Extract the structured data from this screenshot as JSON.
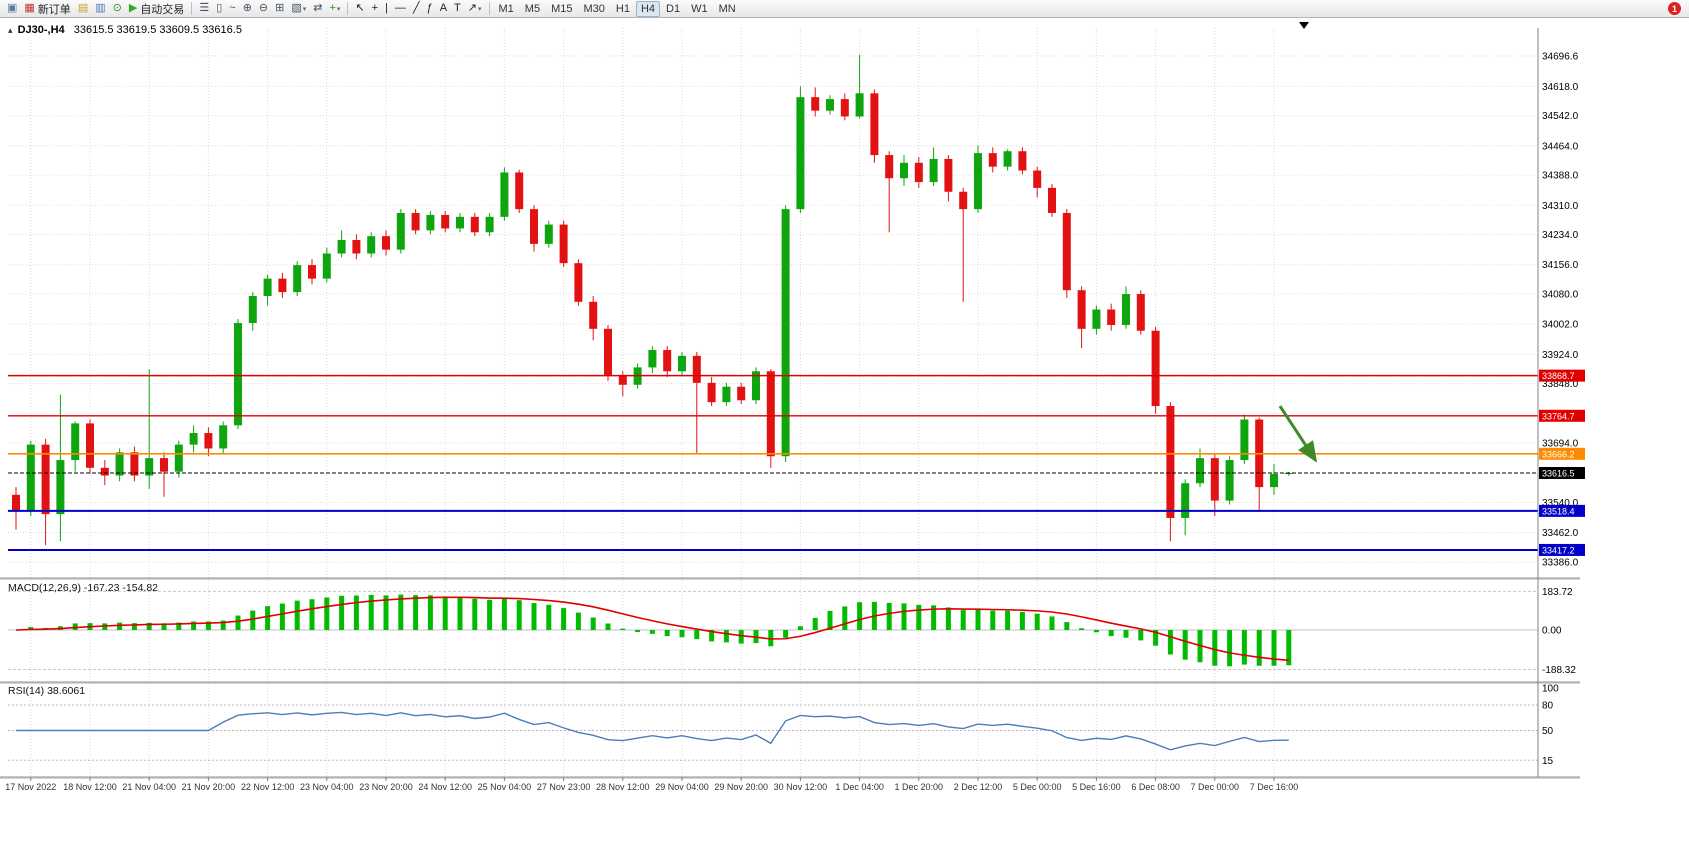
{
  "icons": {
    "chart_mini": "▴"
  },
  "colors": {
    "bull": "#0ea50e",
    "bear": "#e31212",
    "macd_bar": "#00bb00",
    "macd_signal": "#e00000",
    "rsi": "#4a7ebb",
    "grid": "#dcdcdc",
    "bid": "#000000"
  },
  "toolbar": {
    "badge_count": "1",
    "active_timeframe": "H4",
    "timeframes": [
      "M1",
      "M5",
      "M15",
      "M30",
      "H1",
      "H4",
      "D1",
      "W1",
      "MN"
    ],
    "items": [
      {
        "type": "icon",
        "name": "terminal-icon",
        "glyph": "▣",
        "color": "#5a7aa0"
      },
      {
        "type": "button",
        "name": "new-order-button",
        "glyph": "▦",
        "color": "#c03030",
        "label": "新订单"
      },
      {
        "type": "icon",
        "name": "charts-icon",
        "glyph": "▤",
        "color": "#c9a227"
      },
      {
        "type": "icon",
        "name": "market-watch-icon",
        "glyph": "▥",
        "color": "#4878b8"
      },
      {
        "type": "icon",
        "name": "history-center-icon",
        "glyph": "⊙",
        "color": "#2e8b2e"
      },
      {
        "type": "button",
        "name": "autotrade-button",
        "glyph": "▶",
        "color": "#2eaa2e",
        "label": "自动交易"
      },
      {
        "type": "separator"
      },
      {
        "type": "icon",
        "name": "bar-chart-type-icon",
        "glyph": "☰",
        "color": "#445566"
      },
      {
        "type": "icon",
        "name": "candlestick-chart-type-icon",
        "glyph": "▯",
        "color": "#445566"
      },
      {
        "type": "icon",
        "name": "line-chart-type-icon",
        "glyph": "~",
        "color": "#445566"
      },
      {
        "type": "icon",
        "name": "zoom-in-icon",
        "glyph": "⊕",
        "color": "#445566"
      },
      {
        "type": "icon",
        "name": "zoom-out-icon",
        "glyph": "⊖",
        "color": "#445566"
      },
      {
        "type": "icon",
        "name": "tile-windows-icon",
        "glyph": "⊞",
        "color": "#445566"
      },
      {
        "type": "icon",
        "name": "templates-icon",
        "glyph": "▧",
        "color": "#445566",
        "caret": true
      },
      {
        "type": "icon",
        "name": "auto-scroll-icon",
        "glyph": "⇄",
        "color": "#445566"
      },
      {
        "type": "icon",
        "name": "indicators-icon",
        "glyph": "+",
        "color": "#2e8b2e",
        "caret": true
      },
      {
        "type": "separator"
      },
      {
        "type": "icon",
        "name": "cursor-icon",
        "glyph": "↖",
        "color": "#222222"
      },
      {
        "type": "icon",
        "name": "crosshair-icon",
        "glyph": "+",
        "color": "#222222"
      },
      {
        "type": "icon",
        "name": "vertical-line-icon",
        "glyph": "|",
        "color": "#222222"
      },
      {
        "type": "icon",
        "name": "horizontal-line-icon",
        "glyph": "—",
        "color": "#222222"
      },
      {
        "type": "icon",
        "name": "trendline-icon",
        "glyph": "╱",
        "color": "#222222"
      },
      {
        "type": "icon",
        "name": "fibonacci-icon",
        "glyph": "ƒ",
        "color": "#222222"
      },
      {
        "type": "icon",
        "name": "text-icon",
        "glyph": "A",
        "color": "#222222"
      },
      {
        "type": "icon",
        "name": "text-label-icon",
        "glyph": "T",
        "color": "#222222"
      },
      {
        "type": "icon",
        "name": "arrows-icon",
        "glyph": "↗",
        "color": "#222222",
        "caret": true
      },
      {
        "type": "separator"
      }
    ]
  },
  "chart_data": {
    "type": "candlestick",
    "symbol": "DJ30-",
    "timeframe": "H4",
    "title_text": "DJ30-,H4",
    "ohlc_text": "33615.5 33619.5 33609.5 33616.5",
    "x_label_start_index": 1,
    "x_label_step": 4,
    "x_labels": [
      "17 Nov 2022",
      "18 Nov 12:00",
      "21 Nov 04:00",
      "21 Nov 20:00",
      "22 Nov 12:00",
      "23 Nov 04:00",
      "23 Nov 20:00",
      "24 Nov 12:00",
      "25 Nov 04:00",
      "27 Nov 23:00",
      "28 Nov 12:00",
      "29 Nov 04:00",
      "29 Nov 20:00",
      "30 Nov 12:00",
      "1 Dec 04:00",
      "1 Dec 20:00",
      "2 Dec 12:00",
      "5 Dec 00:00",
      "5 Dec 16:00",
      "6 Dec 08:00",
      "7 Dec 00:00",
      "7 Dec 16:00"
    ],
    "price_axis_ticks": [
      "34696.6",
      "34618.0",
      "34542.0",
      "34464.0",
      "34388.0",
      "34310.0",
      "34234.0",
      "34156.0",
      "34080.0",
      "34002.0",
      "33924.0",
      "33848.0",
      "33694.0",
      "33540.0",
      "33462.0",
      "33386.0"
    ],
    "candles": [
      [
        33560,
        33580,
        33470,
        33520
      ],
      [
        33520,
        33700,
        33505,
        33690
      ],
      [
        33690,
        33705,
        33430,
        33510
      ],
      [
        33510,
        33820,
        33440,
        33650
      ],
      [
        33650,
        33750,
        33620,
        33745
      ],
      [
        33745,
        33755,
        33615,
        33630
      ],
      [
        33630,
        33650,
        33585,
        33610
      ],
      [
        33610,
        33680,
        33595,
        33670
      ],
      [
        33670,
        33685,
        33595,
        33610
      ],
      [
        33610,
        33885,
        33575,
        33655
      ],
      [
        33655,
        33670,
        33555,
        33620
      ],
      [
        33620,
        33700,
        33605,
        33690
      ],
      [
        33690,
        33740,
        33670,
        33720
      ],
      [
        33720,
        33735,
        33660,
        33680
      ],
      [
        33680,
        33750,
        33665,
        33740
      ],
      [
        33740,
        34015,
        33730,
        34005
      ],
      [
        34005,
        34085,
        33985,
        34075
      ],
      [
        34075,
        34130,
        34050,
        34120
      ],
      [
        34120,
        34135,
        34070,
        34085
      ],
      [
        34085,
        34165,
        34075,
        34155
      ],
      [
        34155,
        34170,
        34105,
        34120
      ],
      [
        34120,
        34200,
        34110,
        34185
      ],
      [
        34185,
        34245,
        34175,
        34220
      ],
      [
        34220,
        34235,
        34170,
        34185
      ],
      [
        34185,
        34240,
        34175,
        34230
      ],
      [
        34230,
        34245,
        34180,
        34195
      ],
      [
        34195,
        34300,
        34185,
        34290
      ],
      [
        34290,
        34300,
        34235,
        34245
      ],
      [
        34245,
        34295,
        34235,
        34285
      ],
      [
        34285,
        34295,
        34240,
        34250
      ],
      [
        34250,
        34290,
        34240,
        34280
      ],
      [
        34280,
        34290,
        34230,
        34240
      ],
      [
        34240,
        34290,
        34230,
        34280
      ],
      [
        34280,
        34408,
        34270,
        34395
      ],
      [
        34395,
        34402,
        34290,
        34300
      ],
      [
        34300,
        34310,
        34190,
        34210
      ],
      [
        34210,
        34270,
        34200,
        34260
      ],
      [
        34260,
        34270,
        34150,
        34160
      ],
      [
        34160,
        34170,
        34050,
        34060
      ],
      [
        34060,
        34075,
        33960,
        33990
      ],
      [
        33990,
        34000,
        33855,
        33870
      ],
      [
        33870,
        33880,
        33815,
        33845
      ],
      [
        33845,
        33900,
        33835,
        33890
      ],
      [
        33890,
        33945,
        33875,
        33935
      ],
      [
        33935,
        33945,
        33865,
        33880
      ],
      [
        33880,
        33930,
        33870,
        33920
      ],
      [
        33920,
        33930,
        33665,
        33850
      ],
      [
        33850,
        33865,
        33790,
        33800
      ],
      [
        33800,
        33850,
        33790,
        33840
      ],
      [
        33840,
        33850,
        33795,
        33805
      ],
      [
        33805,
        33890,
        33795,
        33880
      ],
      [
        33880,
        33885,
        33630,
        33660
      ],
      [
        33660,
        34310,
        33645,
        34300
      ],
      [
        34300,
        34618,
        34290,
        34590
      ],
      [
        34590,
        34615,
        34540,
        34555
      ],
      [
        34555,
        34595,
        34545,
        34585
      ],
      [
        34585,
        34600,
        34530,
        34540
      ],
      [
        34540,
        34700,
        34535,
        34600
      ],
      [
        34600,
        34610,
        34420,
        34440
      ],
      [
        34440,
        34450,
        34240,
        34380
      ],
      [
        34380,
        34440,
        34360,
        34420
      ],
      [
        34420,
        34435,
        34355,
        34370
      ],
      [
        34370,
        34460,
        34360,
        34430
      ],
      [
        34430,
        34440,
        34320,
        34345
      ],
      [
        34345,
        34355,
        34060,
        34300
      ],
      [
        34300,
        34465,
        34290,
        34445
      ],
      [
        34445,
        34460,
        34395,
        34410
      ],
      [
        34410,
        34455,
        34400,
        34450
      ],
      [
        34450,
        34460,
        34390,
        34400
      ],
      [
        34400,
        34410,
        34330,
        34355
      ],
      [
        34355,
        34365,
        34280,
        34290
      ],
      [
        34290,
        34300,
        34070,
        34090
      ],
      [
        34090,
        34100,
        33940,
        33990
      ],
      [
        33990,
        34050,
        33975,
        34040
      ],
      [
        34040,
        34055,
        33985,
        34000
      ],
      [
        34000,
        34100,
        33990,
        34080
      ],
      [
        34080,
        34090,
        33975,
        33985
      ],
      [
        33985,
        33995,
        33770,
        33790
      ],
      [
        33790,
        33800,
        33440,
        33500
      ],
      [
        33500,
        33600,
        33455,
        33590
      ],
      [
        33590,
        33680,
        33580,
        33655
      ],
      [
        33655,
        33665,
        33505,
        33545
      ],
      [
        33545,
        33660,
        33535,
        33650
      ],
      [
        33650,
        33768,
        33640,
        33755
      ],
      [
        33755,
        33760,
        33515,
        33580
      ],
      [
        33580,
        33640,
        33560,
        33614
      ],
      [
        33615.5,
        33619.5,
        33609.5,
        33616.5
      ]
    ],
    "hlines": [
      {
        "price": 33868.7,
        "label": "33868.7",
        "color": "#e00000",
        "width": 1.4
      },
      {
        "price": 33764.7,
        "label": "33764.7",
        "color": "#e00000",
        "width": 1.4
      },
      {
        "price": 33666.2,
        "label": "33666.2",
        "color": "#ff8c00",
        "width": 1.6
      },
      {
        "price": 33518.4,
        "label": "33518.4",
        "color": "#0000c8",
        "width": 2
      },
      {
        "price": 33417.2,
        "label": "33417.2",
        "color": "#0000c8",
        "width": 2
      }
    ],
    "bid": {
      "price": 33616.5,
      "label": "33616.5"
    },
    "indicators": {
      "macd": {
        "name": "MACD",
        "params": "12,26,9",
        "display": "MACD(12,26,9) -167.23 -154.82",
        "value_main": "-167.23",
        "value_signal": "-154.82",
        "axis_ticks": [
          "183.72",
          "0.00",
          "-188.32"
        ]
      },
      "rsi": {
        "name": "RSI",
        "params": "14",
        "display": "RSI(14) 38.6061",
        "value": "38.6061",
        "levels": [
          80,
          50,
          15
        ],
        "axis_ticks": [
          "100",
          "80",
          "50",
          "15"
        ]
      }
    },
    "annotations": [
      {
        "type": "arrow",
        "from_index": 85.4,
        "from_price": 33790,
        "to_index": 87.8,
        "to_price": 33650,
        "color": "#3c8a28"
      }
    ]
  }
}
